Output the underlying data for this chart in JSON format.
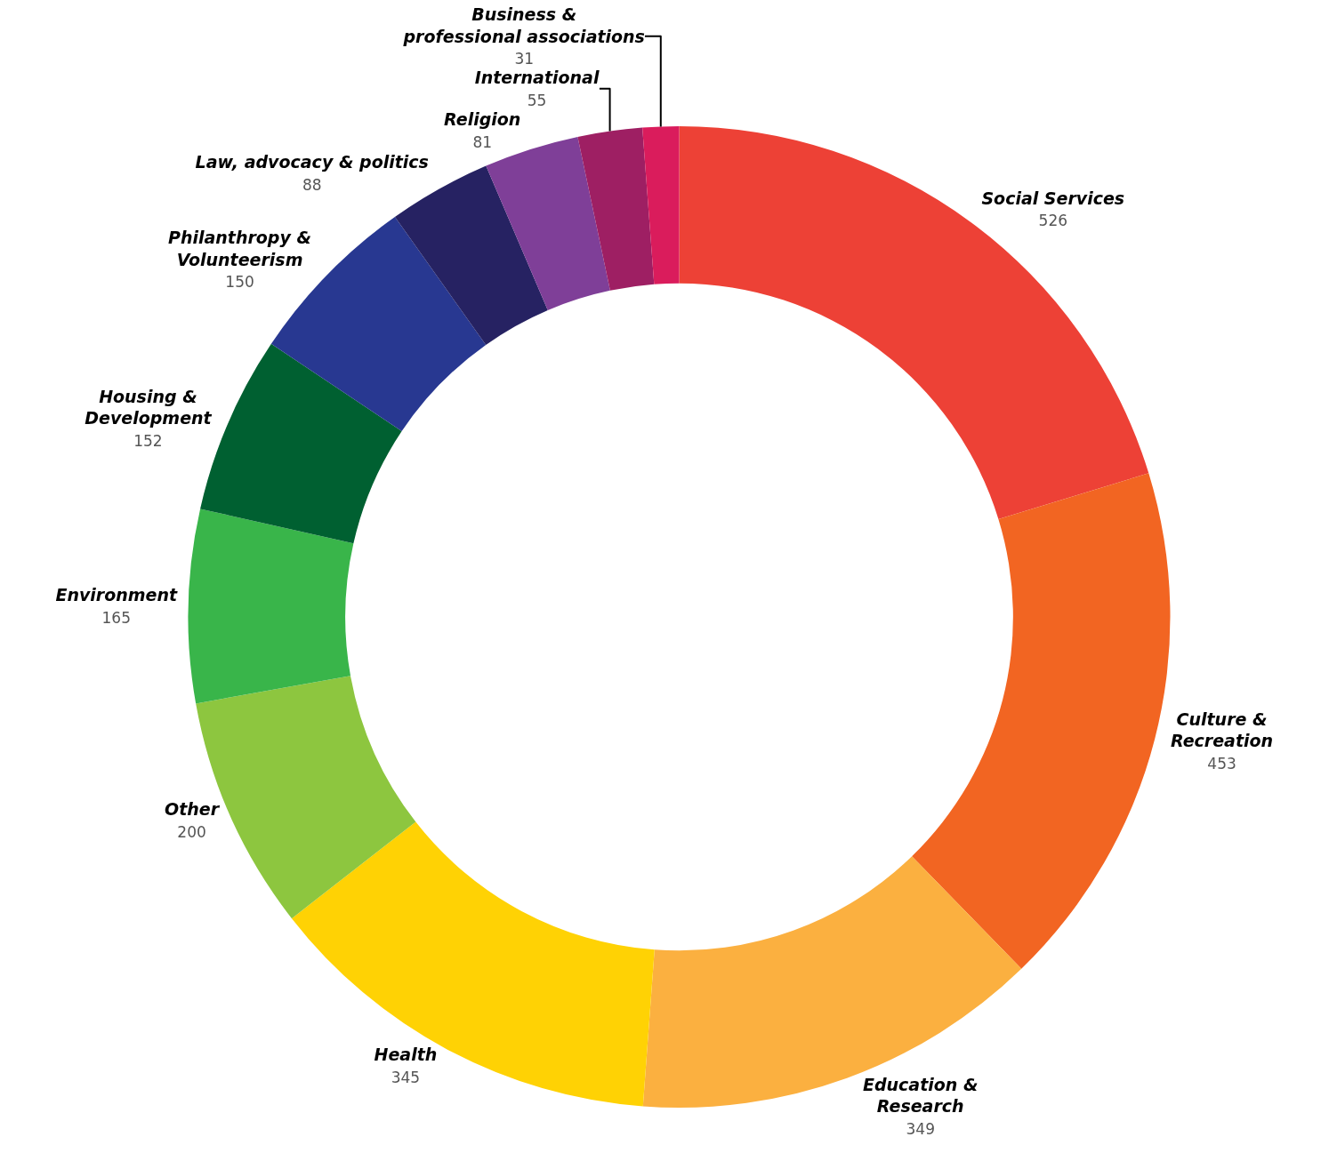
{
  "chart_data": {
    "type": "donut",
    "categories": [
      "Social Services",
      "Culture &\nRecreation",
      "Education &\nResearch",
      "Health",
      "Other",
      "Environment",
      "Housing &\nDevelopment",
      "Philanthropy &\nVolunteerism",
      "Law, advocacy & politics",
      "Religion",
      "International",
      "Business &\nprofessional associations"
    ],
    "values": [
      526,
      453,
      349,
      345,
      200,
      165,
      152,
      150,
      88,
      81,
      55,
      31
    ],
    "colors": [
      "#ed4136",
      "#f26522",
      "#fbb040",
      "#ffd204",
      "#8dc63f",
      "#39b54a",
      "#006031",
      "#283891",
      "#262262",
      "#7f3f98",
      "#9e1f63",
      "#da1c5c"
    ],
    "data_labels": true,
    "legend": false
  }
}
